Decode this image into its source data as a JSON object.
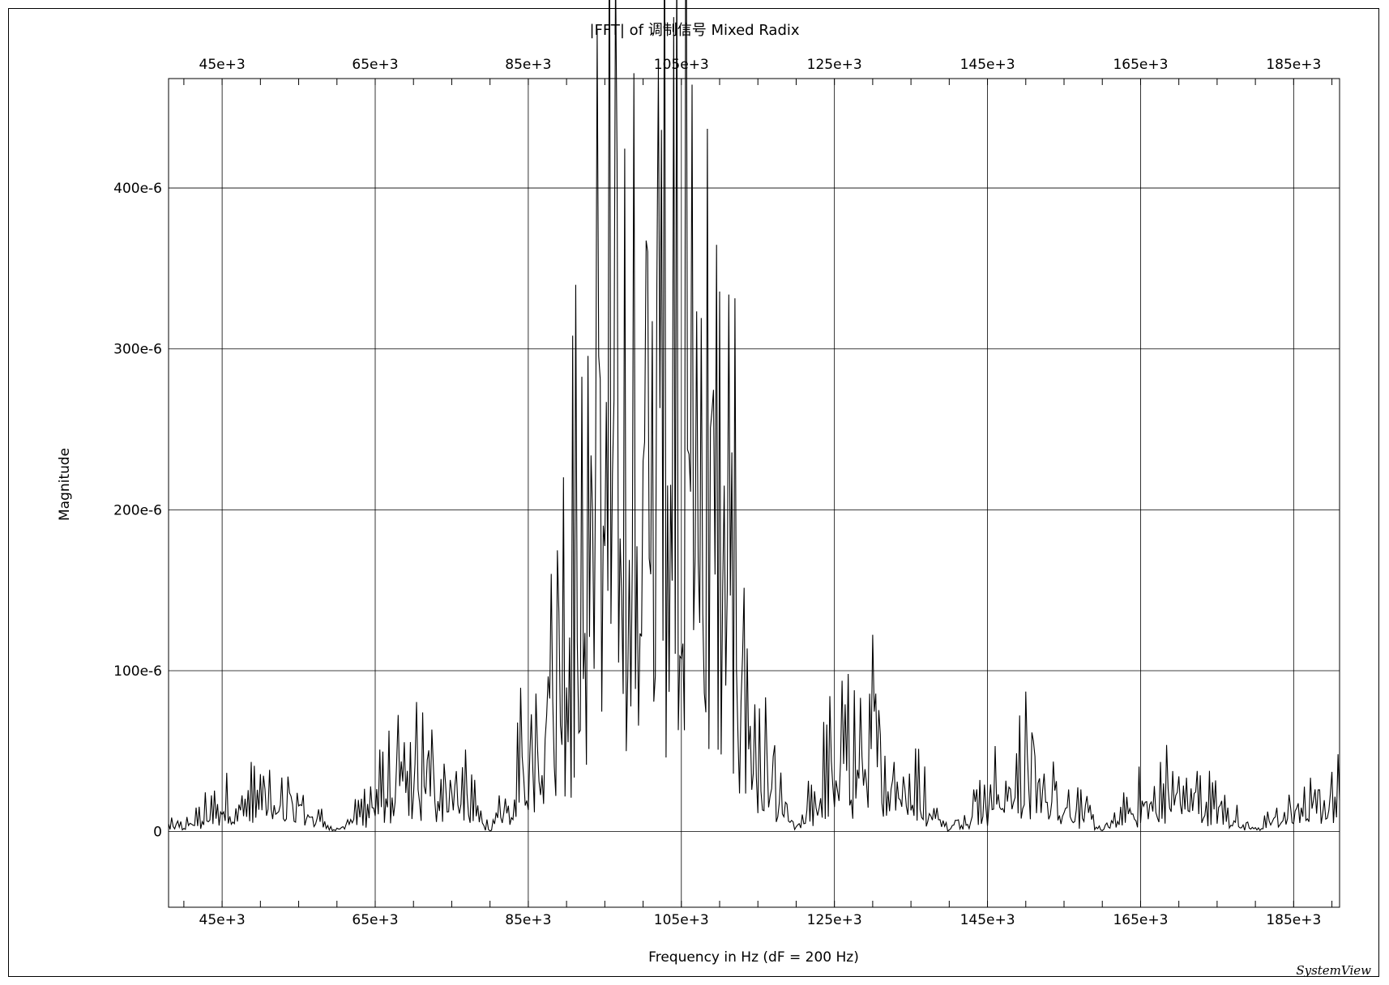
{
  "chart_data": {
    "type": "line",
    "title": "|FFT| of 调制信号 Mixed Radix",
    "xlabel": "Frequency in Hz (dF = 200 Hz)",
    "ylabel": "Magnitude",
    "xlim": [
      38000,
      191000
    ],
    "ylim": [
      -4.7e-05,
      0.000468
    ],
    "x_ticks": [
      45000,
      65000,
      85000,
      105000,
      125000,
      145000,
      165000,
      185000
    ],
    "x_tick_labels": [
      "45e+3",
      "65e+3",
      "85e+3",
      "105e+3",
      "125e+3",
      "145e+3",
      "165e+3",
      "185e+3"
    ],
    "y_ticks": [
      0,
      0.0001,
      0.0002,
      0.0003,
      0.0004
    ],
    "y_tick_labels": [
      "0",
      "100e-6",
      "200e-6",
      "300e-6",
      "400e-6"
    ],
    "grid": true,
    "series": [
      {
        "x_start": 38000,
        "x_step": 200,
        "values": []
      }
    ],
    "envelope_description_points": [
      [
        38000,
        5e-06
      ],
      [
        40000,
        5e-06
      ],
      [
        45000,
        2.2e-05
      ],
      [
        50000,
        2.8e-05
      ],
      [
        55000,
        2.5e-05
      ],
      [
        60000,
        2e-06
      ],
      [
        65000,
        3e-05
      ],
      [
        70000,
        5e-05
      ],
      [
        75000,
        4.5e-05
      ],
      [
        80000,
        2e-06
      ],
      [
        83000,
        3e-05
      ],
      [
        85000,
        7.5e-05
      ],
      [
        88000,
        0.00015
      ],
      [
        92000,
        0.00023
      ],
      [
        94000,
        0.000425
      ],
      [
        98000,
        0.0003
      ],
      [
        101000,
        0.00036
      ],
      [
        105000,
        0.000423
      ],
      [
        110000,
        0.00027
      ],
      [
        113000,
        0.00015
      ],
      [
        115000,
        6e-05
      ],
      [
        120000,
        2e-06
      ],
      [
        125000,
        6e-05
      ],
      [
        130000,
        8e-05
      ],
      [
        135000,
        4e-05
      ],
      [
        140000,
        2e-06
      ],
      [
        145000,
        3.5e-05
      ],
      [
        150000,
        5.5e-05
      ],
      [
        155000,
        3e-05
      ],
      [
        160000,
        2e-06
      ],
      [
        165000,
        2.5e-05
      ],
      [
        170000,
        4e-05
      ],
      [
        175000,
        2e-05
      ],
      [
        180000,
        2e-06
      ],
      [
        185000,
        2e-05
      ],
      [
        191000,
        3e-05
      ]
    ]
  },
  "footer": {
    "watermark": "SystemView"
  }
}
